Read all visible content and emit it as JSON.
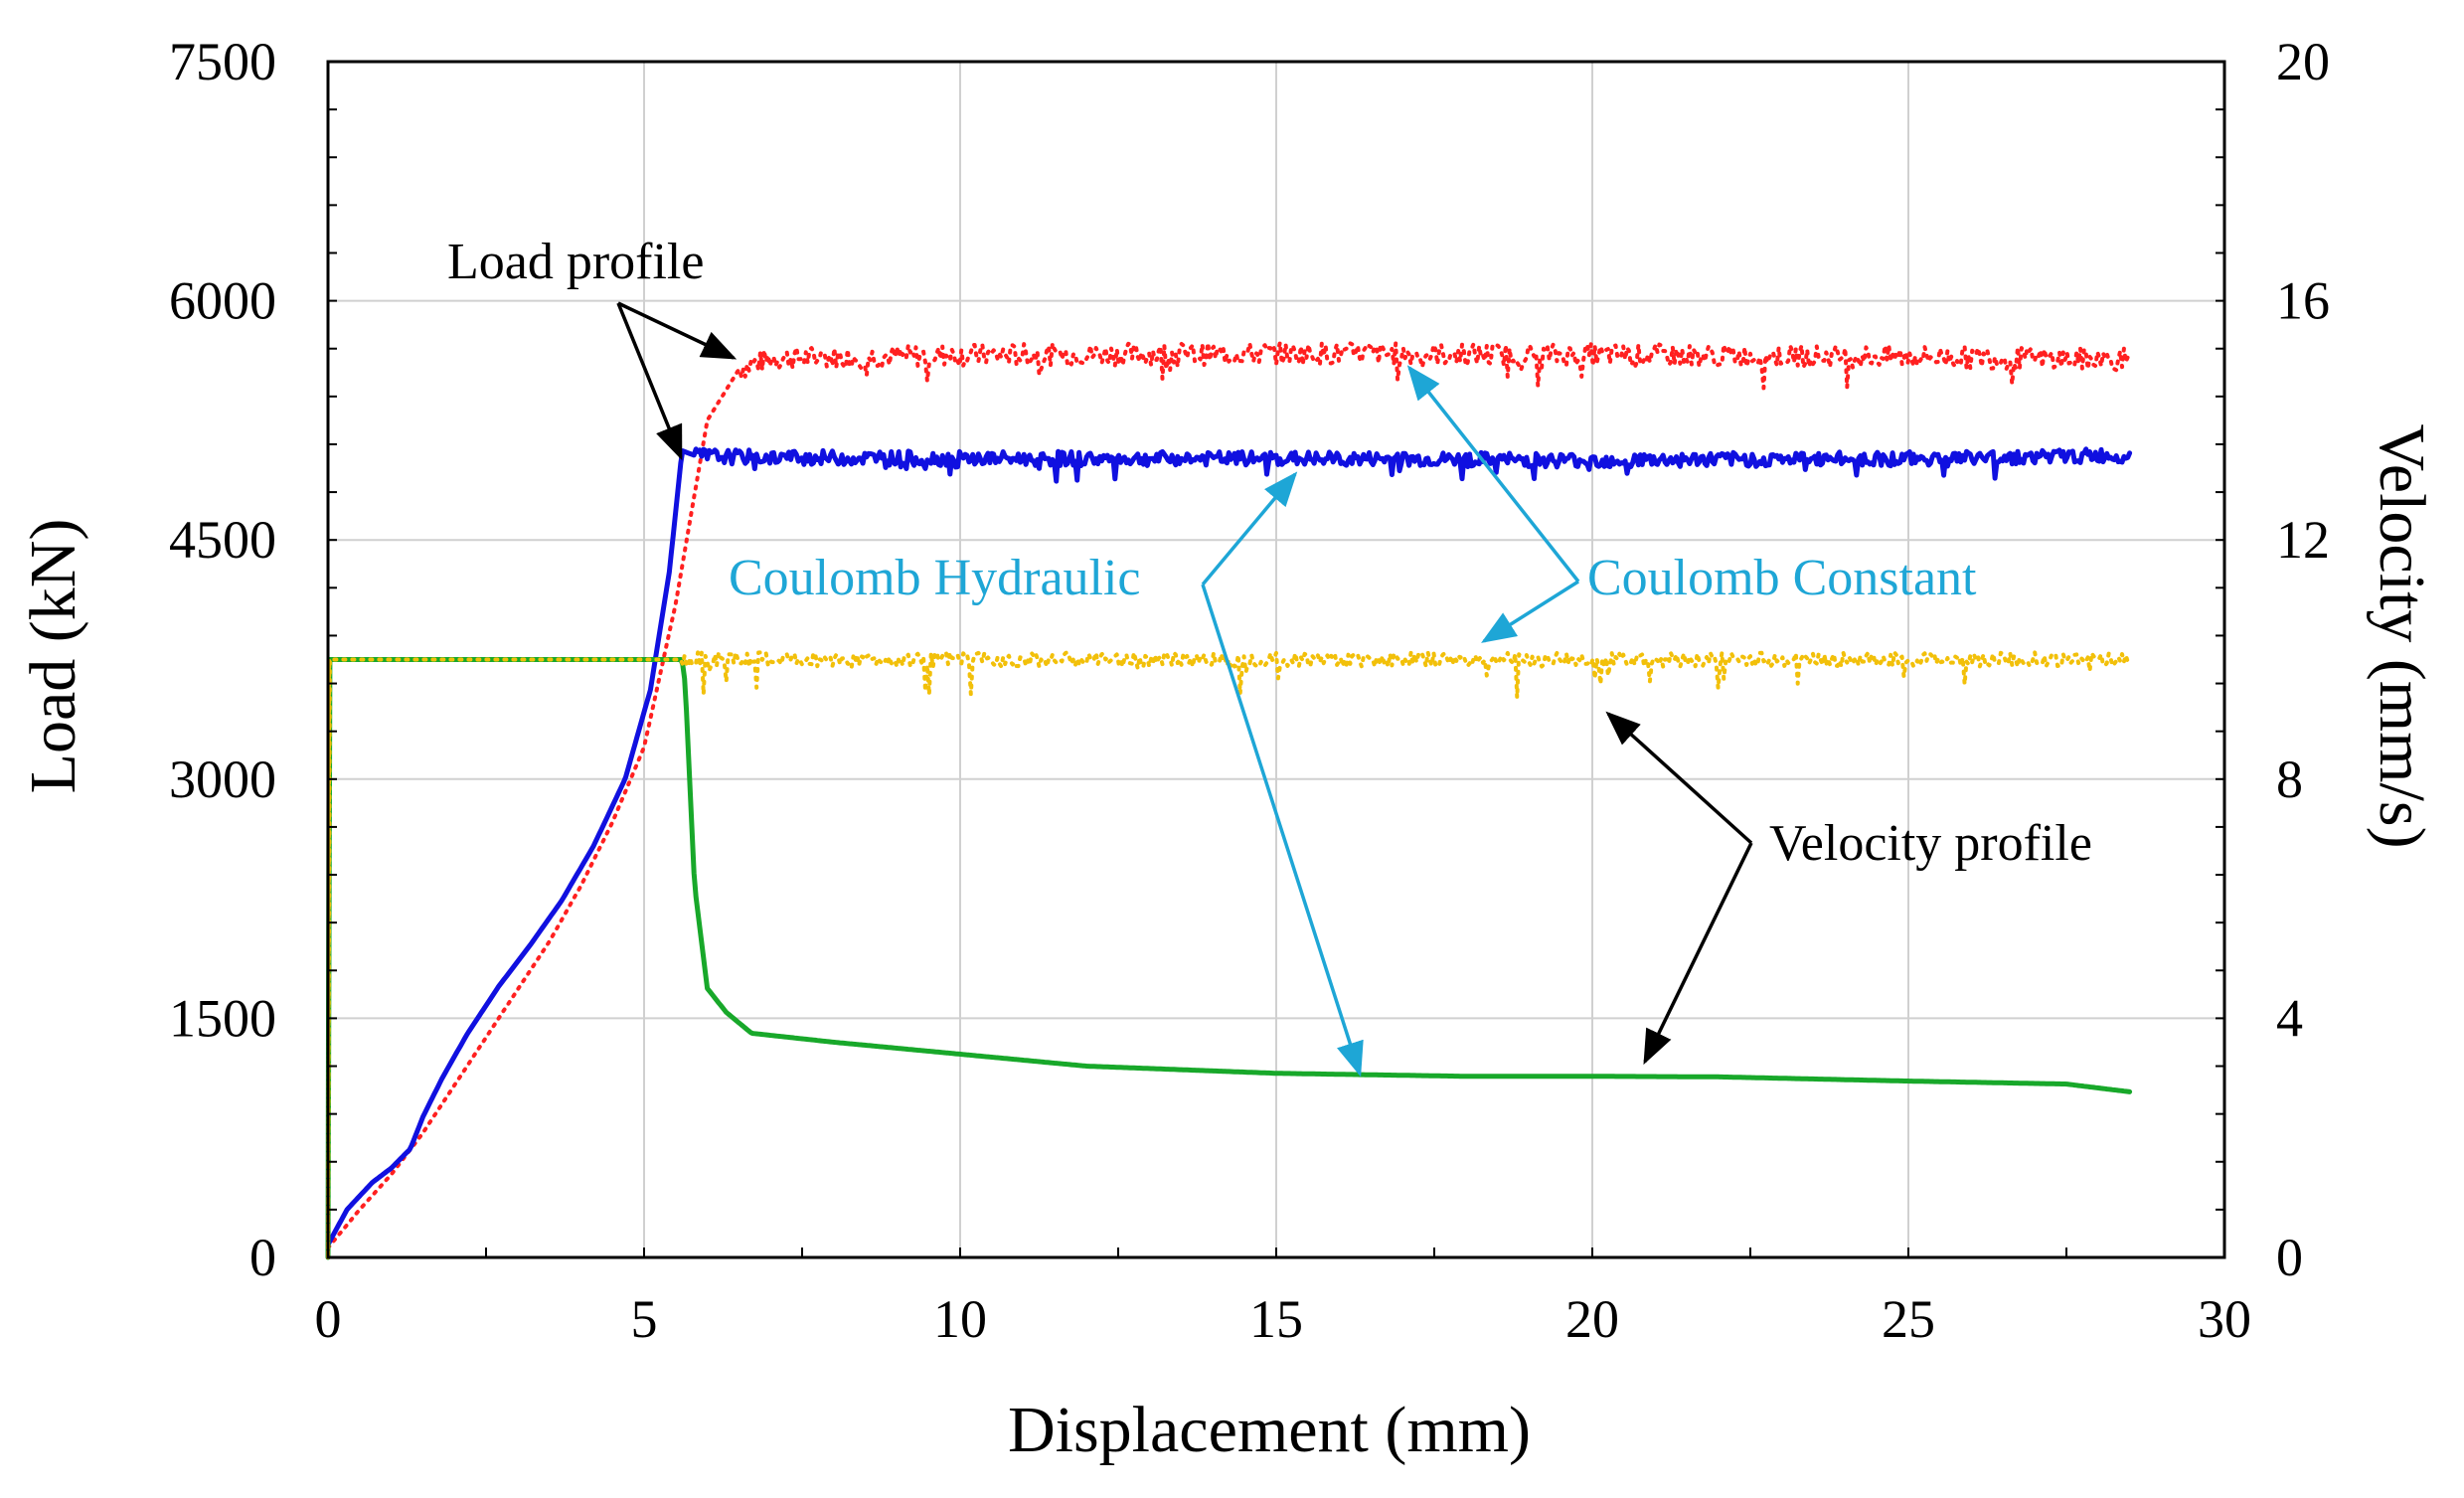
{
  "chart_data": {
    "type": "line",
    "xlabel": "Displacement (mm)",
    "ylabel": "Load (kN)",
    "y2label": "Velocity (mm/s)",
    "xlim": [
      0,
      30
    ],
    "ylim": [
      0,
      7500
    ],
    "y2lim": [
      0,
      20
    ],
    "xticks": [
      0,
      5,
      10,
      15,
      20,
      25,
      30
    ],
    "yticks": [
      0,
      1500,
      3000,
      4500,
      6000,
      7500
    ],
    "y2ticks": [
      0,
      4,
      8,
      12,
      16,
      20
    ],
    "grid": true,
    "series": [
      {
        "name": "Coulomb Constant load",
        "axis": "left",
        "style": "dotted",
        "color": "#ff2020",
        "x": [
          0,
          0.5,
          1,
          1.5,
          2,
          2.5,
          3,
          3.5,
          4,
          4.5,
          5,
          5.5,
          6,
          6.5,
          7,
          10,
          15,
          20,
          25,
          28.5
        ],
        "y": [
          60,
          300,
          520,
          780,
          1080,
          1380,
          1680,
          1980,
          2330,
          2730,
          3200,
          4100,
          5250,
          5570,
          5640,
          5660,
          5670,
          5660,
          5650,
          5630
        ]
      },
      {
        "name": "Coulomb Hydraulic load",
        "axis": "left",
        "style": "solid",
        "color": "#1010e0",
        "x": [
          0,
          0.3,
          0.7,
          1,
          1.3,
          1.5,
          1.8,
          2.2,
          2.7,
          3.2,
          3.7,
          4.2,
          4.7,
          5.1,
          5.4,
          5.6,
          5.8,
          6.5,
          10,
          15,
          20,
          25,
          28.5
        ],
        "y": [
          80,
          300,
          470,
          560,
          680,
          880,
          1120,
          1400,
          1700,
          1960,
          2240,
          2580,
          3000,
          3560,
          4300,
          5060,
          5030,
          5020,
          5010,
          5010,
          5000,
          5010,
          5030
        ]
      },
      {
        "name": "Coulomb Hydraulic velocity",
        "axis": "right",
        "style": "solid",
        "color": "#18a82a",
        "x": [
          0,
          0.02,
          5.6,
          5.65,
          5.8,
          6.0,
          6.3,
          6.7,
          8,
          10,
          12,
          15,
          18,
          20,
          22,
          25,
          27.5,
          28.5
        ],
        "y": [
          0,
          10,
          10,
          9.6,
          6.2,
          4.5,
          4.1,
          3.75,
          3.6,
          3.4,
          3.2,
          3.08,
          3.03,
          3.03,
          3.02,
          2.95,
          2.9,
          2.77
        ]
      },
      {
        "name": "Coulomb Constant velocity",
        "axis": "right",
        "style": "dotted",
        "color": "#f2c00a",
        "x": [
          0,
          0.02,
          5.6,
          10,
          15,
          20,
          25,
          28.5
        ],
        "y": [
          0,
          10,
          10,
          10,
          10,
          10,
          10,
          10
        ]
      }
    ],
    "annotations": [
      "Load profile",
      "Coulomb Hydraulic",
      "Coulomb Constant",
      "Velocity profile"
    ]
  },
  "colors": {
    "arrow_black": "#000000",
    "arrow_cyan": "#1ea6d6",
    "grid": "#d0d0d0"
  }
}
